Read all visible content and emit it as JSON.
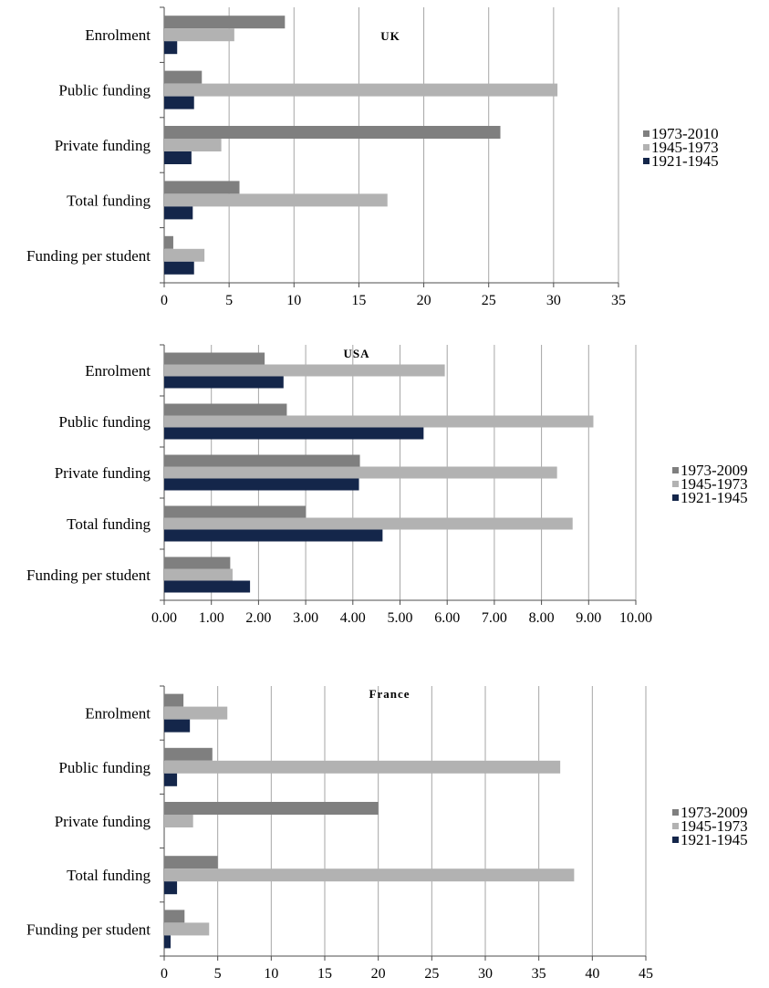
{
  "colors": {
    "s1973": "#7f7f7f",
    "s1945": "#b2b2b2",
    "s1921": "#14264a",
    "gridline": "#a6a6a6",
    "axis": "#4d4d4d"
  },
  "chart_data": [
    {
      "type": "bar",
      "orientation": "horizontal",
      "title": "UK",
      "categories": [
        "Enrolment",
        "Public funding",
        "Private funding",
        "Total funding",
        "Funding per student"
      ],
      "series": [
        {
          "name": "1973-2010",
          "values": [
            9.3,
            2.9,
            25.9,
            5.8,
            0.7
          ]
        },
        {
          "name": "1945-1973",
          "values": [
            5.4,
            30.3,
            4.4,
            17.2,
            3.1
          ]
        },
        {
          "name": "1921-1945",
          "values": [
            1.0,
            2.3,
            2.1,
            2.2,
            2.3
          ]
        }
      ],
      "xlim": [
        0,
        35
      ],
      "ticks": [
        "0",
        "5",
        "10",
        "15",
        "20",
        "25",
        "30",
        "35"
      ],
      "tick_values": [
        0,
        5,
        10,
        15,
        20,
        25,
        30,
        35
      ],
      "grid": true,
      "legend": "right"
    },
    {
      "type": "bar",
      "orientation": "horizontal",
      "title": "USA",
      "categories": [
        "Enrolment",
        "Public funding",
        "Private funding",
        "Total funding",
        "Funding per student"
      ],
      "series": [
        {
          "name": "1973-2009",
          "values": [
            2.13,
            2.6,
            4.15,
            3.0,
            1.4
          ]
        },
        {
          "name": "1945-1973",
          "values": [
            5.95,
            9.1,
            8.33,
            8.66,
            1.45
          ]
        },
        {
          "name": "1921-1945",
          "values": [
            2.53,
            5.5,
            4.13,
            4.63,
            1.82
          ]
        }
      ],
      "xlim": [
        0,
        10
      ],
      "ticks": [
        "0.00",
        "1.00",
        "2.00",
        "3.00",
        "4.00",
        "5.00",
        "6.00",
        "7.00",
        "8.00",
        "9.00",
        "10.00"
      ],
      "tick_values": [
        0,
        1,
        2,
        3,
        4,
        5,
        6,
        7,
        8,
        9,
        10
      ],
      "grid": true,
      "legend": "right"
    },
    {
      "type": "bar",
      "orientation": "horizontal",
      "title": "France",
      "categories": [
        "Enrolment",
        "Public funding",
        "Private funding",
        "Total funding",
        "Funding per student"
      ],
      "series": [
        {
          "name": "1973-2009",
          "values": [
            1.8,
            4.5,
            20.0,
            5.0,
            1.9
          ]
        },
        {
          "name": "1945-1973",
          "values": [
            5.9,
            37.0,
            2.7,
            38.3,
            4.2
          ]
        },
        {
          "name": "1921-1945",
          "values": [
            2.4,
            1.2,
            0,
            1.2,
            0.6
          ]
        }
      ],
      "xlim": [
        0,
        45
      ],
      "ticks": [
        "0",
        "5",
        "10",
        "15",
        "20",
        "25",
        "30",
        "35",
        "40",
        "45"
      ],
      "tick_values": [
        0,
        5,
        10,
        15,
        20,
        25,
        30,
        35,
        40,
        45
      ],
      "grid": true,
      "legend": "right"
    }
  ]
}
